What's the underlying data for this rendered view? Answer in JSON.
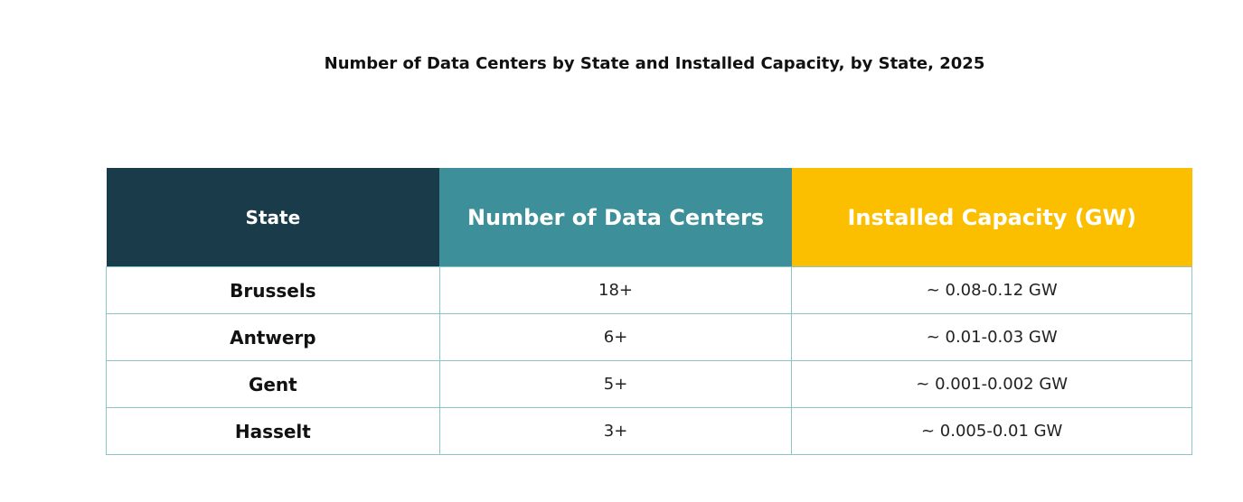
{
  "header": {
    "title": "Number of Data Centers by State and Installed Capacity, by State, 2025"
  },
  "table": {
    "columns": [
      "State",
      "Number of Data Centers",
      "Installed Capacity (GW)"
    ],
    "rows": [
      [
        "Brussels",
        "18+",
        "~ 0.08-0.12 GW"
      ],
      [
        "Antwerp",
        "6+",
        "~ 0.01-0.03 GW"
      ],
      [
        "Gent",
        "5+",
        "~ 0.001-0.002 GW"
      ],
      [
        "Hasselt",
        "3+",
        "~ 0.005-0.01 GW"
      ]
    ]
  }
}
